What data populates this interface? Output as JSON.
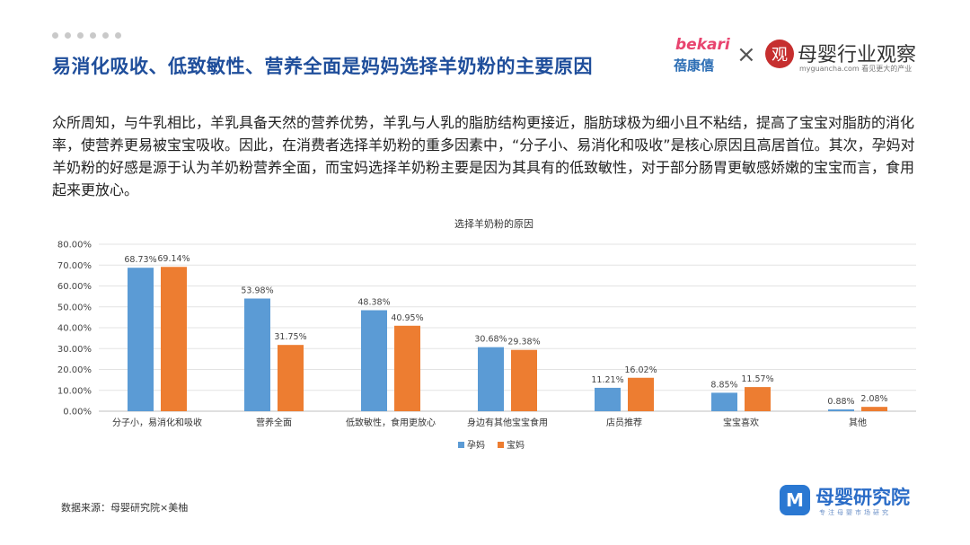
{
  "header": {
    "title": "易消化吸收、低致敏性、营养全面是妈妈选择羊奶粉的主要原因",
    "logo_bekari_top": "bekari",
    "logo_bekari_cn": "蓓康僖",
    "times_sign": "×",
    "logo_guan_mark": "观",
    "logo_guan_name": "母婴行业观察",
    "logo_guan_sub": "myguancha.com 看见更大的产业"
  },
  "body": {
    "paragraph": "众所周知，与牛乳相比，羊乳具备天然的营养优势，羊乳与人乳的脂肪结构更接近，脂肪球极为细小且不粘结，提高了宝宝对脂肪的消化率，使营养更易被宝宝吸收。因此，在消费者选择羊奶粉的重多因素中，“分子小、易消化和吸收”是核心原因且高居首位。其次，孕妈对羊奶粉的好感是源于认为羊奶粉营养全面，而宝妈选择羊奶粉主要是因为其具有的低致敏性，对于部分肠胃更敏感娇嫩的宝宝而言，食用起来更放心。"
  },
  "chart_data": {
    "type": "bar",
    "title": "选择羊奶粉的原因",
    "categories": [
      "分子小，易消化和吸收",
      "营养全面",
      "低致敏性，食用更放心",
      "身边有其他宝宝食用",
      "店员推荐",
      "宝宝喜欢",
      "其他"
    ],
    "series": [
      {
        "name": "孕妈",
        "color": "#5b9bd5",
        "values": [
          68.73,
          53.98,
          48.38,
          30.68,
          11.21,
          8.85,
          0.88
        ],
        "labels": [
          "68.73%",
          "53.98%",
          "48.38%",
          "30.68%",
          "11.21%",
          "8.85%",
          "0.88%"
        ]
      },
      {
        "name": "宝妈",
        "color": "#ed7d31",
        "values": [
          69.14,
          31.75,
          40.95,
          29.38,
          16.02,
          11.57,
          2.08
        ],
        "labels": [
          "69.14%",
          "31.75%",
          "40.95%",
          "29.38%",
          "16.02%",
          "11.57%",
          "2.08%"
        ]
      }
    ],
    "yticks": [
      0,
      10,
      20,
      30,
      40,
      50,
      60,
      70,
      80
    ],
    "ytick_labels": [
      "0.00%",
      "10.00%",
      "20.00%",
      "30.00%",
      "40.00%",
      "50.00%",
      "60.00%",
      "70.00%",
      "80.00%"
    ],
    "ylim": [
      0,
      80
    ],
    "legend_position": "bottom"
  },
  "footer": {
    "source": "数据来源：母婴研究院×美柚",
    "brand_icon": "M",
    "brand_name": "母婴研究院",
    "brand_sub": "专注母婴市场研究"
  }
}
